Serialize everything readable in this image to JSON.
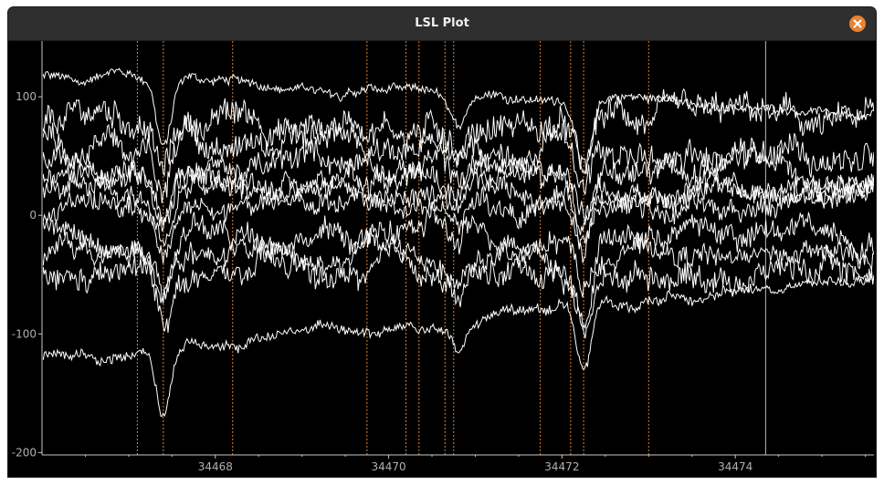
{
  "window": {
    "title": "LSL Plot"
  },
  "colors": {
    "background": "#000000",
    "trace": "#ffffff",
    "marker": "#e08030",
    "cursor": "#b8c090",
    "axis_text": "#b0b0b0",
    "close_button": "#e9832f"
  },
  "chart_data": {
    "type": "line",
    "title": "",
    "xlabel": "",
    "ylabel": "",
    "xlim": [
      34466.0,
      34475.6
    ],
    "ylim": [
      -202,
      147
    ],
    "x_ticks": [
      34468,
      34470,
      34472,
      34474
    ],
    "x_tick_labels": [
      "34468",
      "34470",
      "34472",
      "34474"
    ],
    "y_ticks": [
      100,
      0,
      -100,
      -200
    ],
    "y_tick_labels": [
      "100",
      "0",
      "-100",
      "-200"
    ],
    "grid": false,
    "legend": "none",
    "event_markers_x": [
      34467.1,
      34467.4,
      34468.2,
      34469.75,
      34470.2,
      34470.35,
      34470.65,
      34470.75,
      34471.75,
      34472.1,
      34472.25,
      34473.0
    ],
    "cursor_x": 34474.35,
    "series_count": 11,
    "series_baselines": [
      118,
      80,
      60,
      42,
      30,
      18,
      5,
      -15,
      -30,
      -55,
      -122
    ],
    "series_amplitudes": [
      6,
      18,
      18,
      16,
      14,
      14,
      14,
      16,
      14,
      16,
      7
    ],
    "series_trends": [
      -30,
      -5,
      -10,
      -2,
      0,
      2,
      5,
      0,
      -5,
      10,
      70
    ],
    "events": [
      {
        "x": 34467.4,
        "depth": 55
      },
      {
        "x": 34470.8,
        "depth": 25
      },
      {
        "x": 34472.25,
        "depth": 60
      }
    ]
  }
}
